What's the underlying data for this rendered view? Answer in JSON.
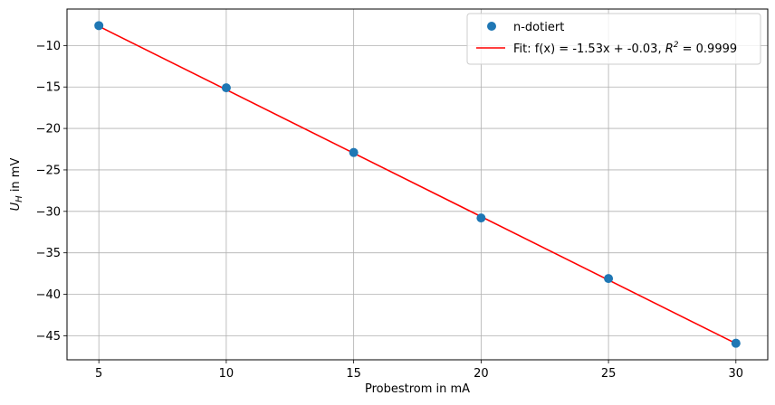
{
  "chart_data": {
    "type": "scatter",
    "x": [
      5,
      10,
      15,
      20,
      25,
      30
    ],
    "series": [
      {
        "name": "n-dotiert",
        "kind": "points",
        "color": "#1f77b4",
        "values": [
          -7.6,
          -15.1,
          -22.9,
          -30.8,
          -38.1,
          -45.9
        ]
      }
    ],
    "fit": {
      "label_main": "Fit: f(x) = -1.53x + -0.03, ",
      "label_r": "R",
      "label_exp": "2",
      "label_tail": " = 0.9999",
      "color": "#ff0000",
      "slope": -1.53,
      "intercept": -0.03,
      "x_range": [
        5,
        30
      ]
    },
    "xlabel": "Probestrom in mA",
    "ylabel_main": "U",
    "ylabel_sub": "H",
    "ylabel_tail": " in mV",
    "xlim": [
      3.75,
      31.25
    ],
    "ylim": [
      -47.9,
      -5.6
    ],
    "xticks": [
      5,
      10,
      15,
      20,
      25,
      30
    ],
    "yticks": [
      -10,
      -15,
      -20,
      -25,
      -30,
      -35,
      -40,
      -45
    ],
    "grid": true,
    "legend_position": "top-right"
  }
}
